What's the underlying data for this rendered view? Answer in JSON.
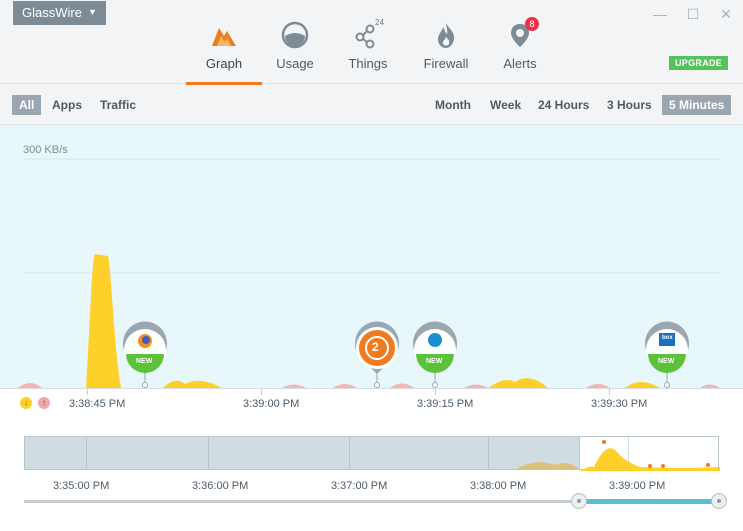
{
  "app": {
    "menu_label": "GlassWire"
  },
  "window_controls": {
    "minimize": "—",
    "maximize": "☐",
    "close": "✕"
  },
  "nav": {
    "tabs": [
      {
        "label": "Graph",
        "icon": "graph-icon",
        "active": true
      },
      {
        "label": "Usage",
        "icon": "usage-icon"
      },
      {
        "label": "Things",
        "icon": "things-icon",
        "badge": "24"
      },
      {
        "label": "Firewall",
        "icon": "firewall-icon"
      },
      {
        "label": "Alerts",
        "icon": "alerts-icon",
        "badge": "8"
      }
    ],
    "upgrade": "UPGRADE"
  },
  "filters": {
    "left": [
      "All",
      "Apps",
      "Traffic"
    ],
    "left_selected": "All",
    "right": [
      "Month",
      "Week",
      "24 Hours",
      "3 Hours",
      "5 Minutes"
    ],
    "right_selected": "5 Minutes"
  },
  "graph": {
    "scale_label": "300 KB/s",
    "new_badge": "NEW",
    "alert_count": "2",
    "box_label": "box"
  },
  "axis": {
    "ticks": [
      "3:38:45 PM",
      "3:39:00 PM",
      "3:39:15 PM",
      "3:39:30 PM"
    ],
    "legend_in": "↓",
    "legend_out": "↑"
  },
  "overview": {
    "ticks": [
      "3:35:00 PM",
      "3:36:00 PM",
      "3:37:00 PM",
      "3:38:00 PM",
      "3:39:00 PM"
    ]
  },
  "colors": {
    "accent": "#f07b1e",
    "incoming": "#ffd02a",
    "outgoing": "#f4a7a7",
    "graph_bg": "#e8f7fb",
    "upgrade": "#55c35a",
    "badge_red": "#e8344c",
    "new_green": "#5cc23a"
  }
}
